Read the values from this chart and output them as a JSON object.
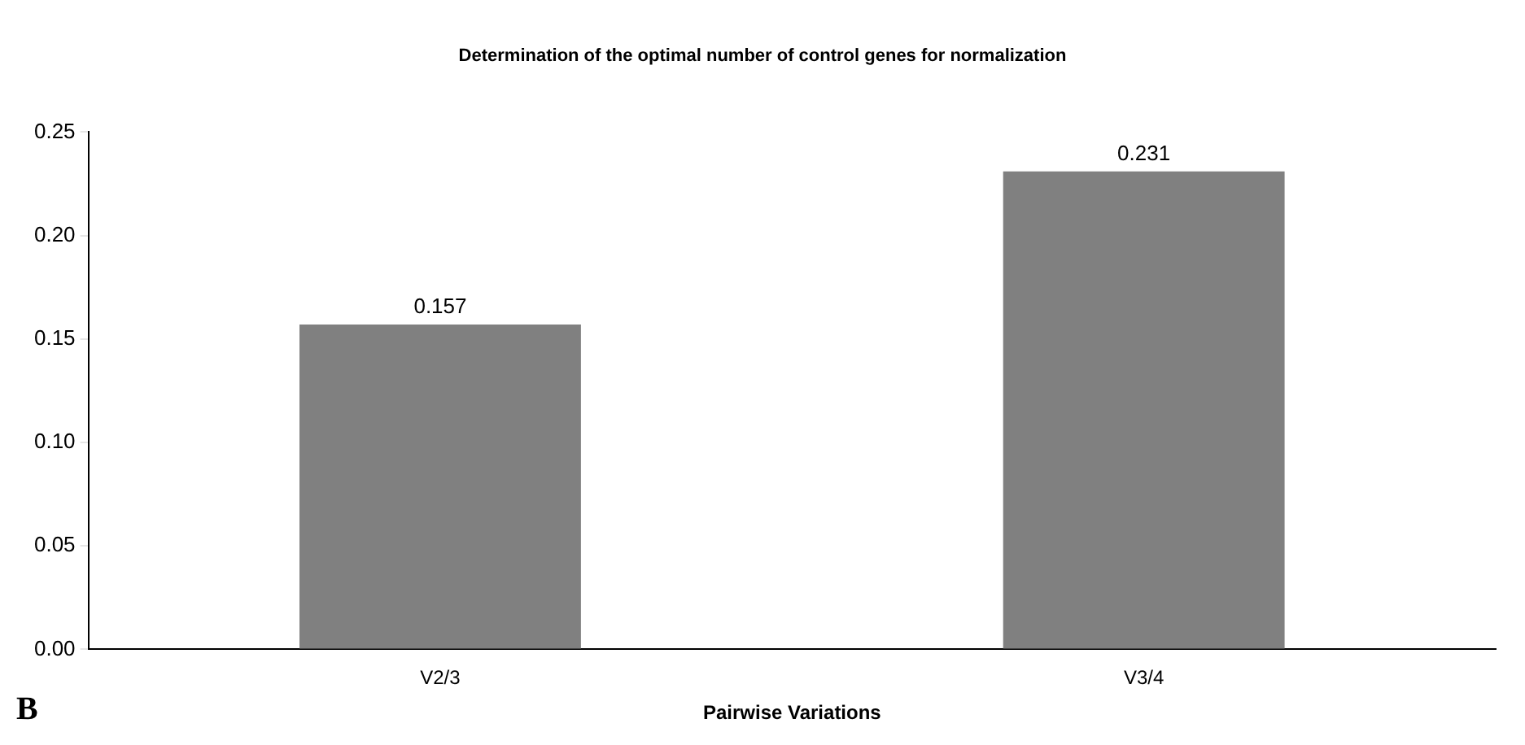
{
  "chart_data": {
    "type": "bar",
    "title": "Determination of the optimal number of control genes for normalization",
    "xlabel": "Pairwise Variations",
    "categories": [
      "V2/3",
      "V3/4"
    ],
    "values": [
      0.157,
      0.231
    ],
    "color": "#808080",
    "data_labels": true,
    "ylim": [
      0,
      0.25
    ],
    "yticks": [
      {
        "value": 0,
        "label": "0.00"
      },
      {
        "value": 0.05,
        "label": "0.05"
      },
      {
        "value": 0.1,
        "label": "0.10"
      },
      {
        "value": 0.15,
        "label": "0.15"
      },
      {
        "value": 0.2,
        "label": "0.20"
      },
      {
        "value": 0.25,
        "label": "0.25"
      }
    ],
    "grid": false,
    "legend": false,
    "annotations": [
      "B"
    ]
  }
}
